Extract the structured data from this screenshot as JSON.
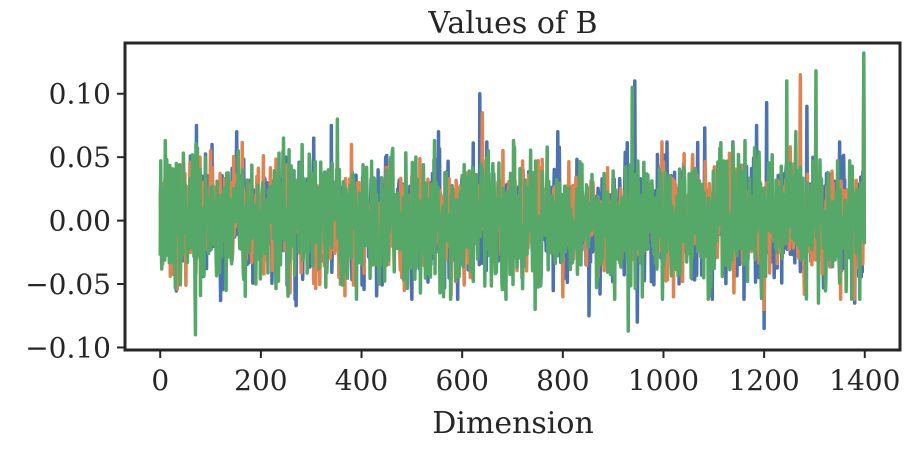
{
  "chart_data": {
    "type": "line",
    "title": "Values of B",
    "xlabel": "Dimension",
    "ylabel": "",
    "xlim": [
      -70,
      1470
    ],
    "ylim": [
      -0.102,
      0.14
    ],
    "xticks": [
      0,
      200,
      400,
      600,
      800,
      1000,
      1200,
      1400
    ],
    "xtick_labels": [
      "0",
      "200",
      "400",
      "600",
      "800",
      "1000",
      "1200",
      "1400"
    ],
    "yticks": [
      -0.1,
      -0.05,
      0.0,
      0.05,
      0.1
    ],
    "ytick_labels": [
      "−0.10",
      "−0.05",
      "0.00",
      "0.05",
      "0.10"
    ],
    "grid": false,
    "n_points": 1400,
    "series": [
      {
        "color": "#4c72b0",
        "sd": 0.022,
        "seed": 11,
        "points": [
          [
            0,
            0.015
          ],
          [
            72,
            0.075
          ],
          [
            120,
            -0.063
          ],
          [
            152,
            0.07
          ],
          [
            270,
            -0.067
          ],
          [
            305,
            0.065
          ],
          [
            340,
            0.075
          ],
          [
            448,
            0.05
          ],
          [
            500,
            -0.062
          ],
          [
            553,
            0.07
          ],
          [
            635,
            0.1
          ],
          [
            790,
            0.07
          ],
          [
            852,
            -0.075
          ],
          [
            943,
            0.11
          ],
          [
            948,
            -0.08
          ],
          [
            1040,
            0.045
          ],
          [
            1082,
            0.073
          ],
          [
            1185,
            0.075
          ],
          [
            1200,
            -0.085
          ],
          [
            1205,
            0.093
          ],
          [
            1285,
            0.09
          ],
          [
            1380,
            -0.065
          ],
          [
            1398,
            0.1
          ]
        ]
      },
      {
        "color": "#dd8452",
        "sd": 0.02,
        "seed": 23,
        "points": [
          [
            0,
            0.02
          ],
          [
            100,
            0.055
          ],
          [
            140,
            0.03
          ],
          [
            258,
            -0.057
          ],
          [
            380,
            0.06
          ],
          [
            480,
            -0.045
          ],
          [
            640,
            0.085
          ],
          [
            720,
            0.047
          ],
          [
            800,
            -0.06
          ],
          [
            1020,
            -0.06
          ],
          [
            1140,
            -0.057
          ],
          [
            1200,
            -0.07
          ],
          [
            1272,
            0.115
          ],
          [
            1280,
            -0.058
          ],
          [
            1398,
            0.125
          ]
        ]
      },
      {
        "color": "#55a868",
        "sd": 0.025,
        "seed": 37,
        "points": [
          [
            10,
            0.063
          ],
          [
            32,
            0.045
          ],
          [
            70,
            -0.09
          ],
          [
            90,
            0.05
          ],
          [
            155,
            0.055
          ],
          [
            190,
            -0.05
          ],
          [
            245,
            0.065
          ],
          [
            352,
            0.08
          ],
          [
            360,
            -0.05
          ],
          [
            435,
            -0.05
          ],
          [
            545,
            0.063
          ],
          [
            563,
            -0.06
          ],
          [
            702,
            0.063
          ],
          [
            745,
            -0.07
          ],
          [
            930,
            -0.087
          ],
          [
            938,
            0.105
          ],
          [
            1120,
            0.047
          ],
          [
            1162,
            0.063
          ],
          [
            1245,
            0.11
          ],
          [
            1263,
            0.07
          ],
          [
            1303,
            0.118
          ],
          [
            1308,
            -0.065
          ],
          [
            1398,
            0.132
          ]
        ]
      }
    ]
  }
}
